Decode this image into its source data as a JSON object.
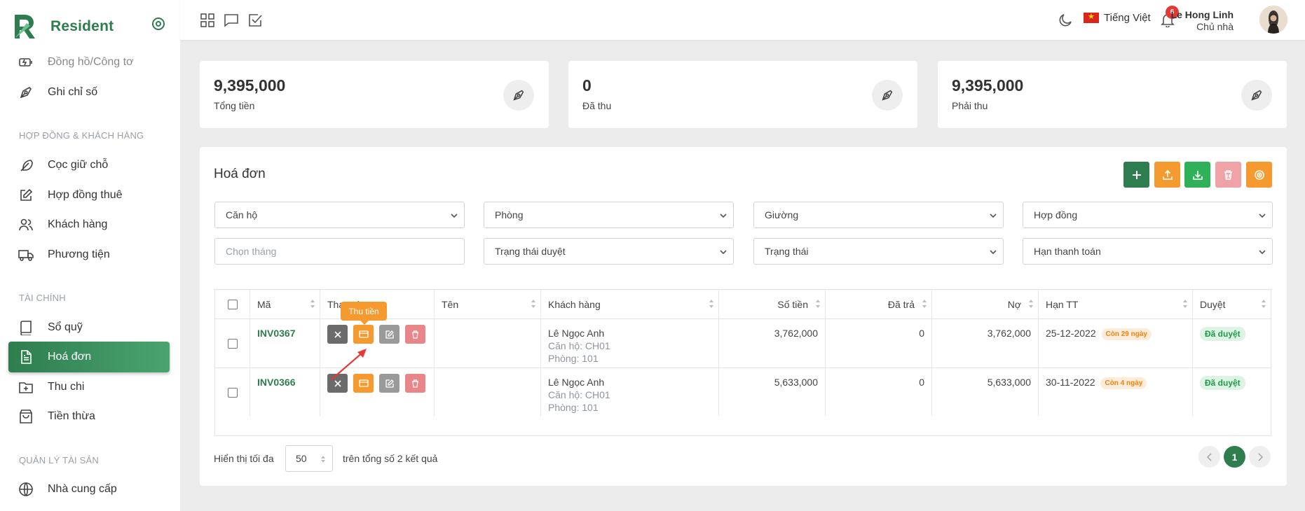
{
  "app": {
    "name": "Resident"
  },
  "sidebar": {
    "items_top": [
      {
        "label": "Đồng hồ/Công tơ",
        "icon": "meter-icon"
      },
      {
        "label": "Ghi chỉ số",
        "icon": "pen-tool-icon"
      }
    ],
    "section_contracts": "HỢP ĐỒNG & KHÁCH HÀNG",
    "items_contracts": [
      {
        "label": "Cọc giữ chỗ",
        "icon": "feather-icon"
      },
      {
        "label": "Hợp đồng thuê",
        "icon": "edit-icon"
      },
      {
        "label": "Khách hàng",
        "icon": "users-icon"
      },
      {
        "label": "Phương tiện",
        "icon": "truck-icon"
      }
    ],
    "section_finance": "TÀI CHÍNH",
    "items_finance": [
      {
        "label": "Sổ quỹ",
        "icon": "book-icon"
      },
      {
        "label": "Hoá đơn",
        "icon": "file-text-icon",
        "active": true
      },
      {
        "label": "Thu chi",
        "icon": "folder-plus-icon"
      },
      {
        "label": "Tiền thừa",
        "icon": "shopping-bag-icon"
      }
    ],
    "section_assets": "QUẢN LÝ TÀI SẢN",
    "items_assets": [
      {
        "label": "Nhà cung cấp",
        "icon": "globe-icon"
      }
    ]
  },
  "topbar": {
    "language": "Tiếng Việt",
    "notification_count": "6",
    "user_name": "Le Hong Linh",
    "user_role": "Chủ nhà"
  },
  "stats": [
    {
      "value": "9,395,000",
      "label": "Tổng tiền"
    },
    {
      "value": "0",
      "label": "Đã thu"
    },
    {
      "value": "9,395,000",
      "label": "Phải thu"
    }
  ],
  "panel": {
    "title": "Hoá đơn",
    "filters": {
      "apartment": "Căn hộ",
      "room": "Phòng",
      "bed": "Giường",
      "contract": "Hợp đồng",
      "month_placeholder": "Chọn tháng",
      "approval_status": "Trạng thái duyệt",
      "status": "Trạng thái",
      "due_date": "Hạn thanh toán"
    },
    "columns": [
      "Mã",
      "Thao tác",
      "Tên",
      "Khách hàng",
      "Số tiền",
      "Đã trả",
      "Nợ",
      "Hạn TT",
      "Duyệt"
    ],
    "tooltip": "Thu tiền",
    "rows": [
      {
        "code": "INV0367",
        "name": "",
        "customer": "Lê Ngọc Anh",
        "apartment": "Căn hộ: CH01",
        "room": "Phòng: 101",
        "amount": "3,762,000",
        "paid": "0",
        "debt": "3,762,000",
        "due": "25-12-2022",
        "remaining": "Còn 29 ngày",
        "approval": "Đã duyệt"
      },
      {
        "code": "INV0366",
        "name": "",
        "customer": "Lê Ngọc Anh",
        "apartment": "Căn hộ: CH01",
        "room": "Phòng: 101",
        "amount": "5,633,000",
        "paid": "0",
        "debt": "5,633,000",
        "due": "30-11-2022",
        "remaining": "Còn 4 ngày",
        "approval": "Đã duyệt"
      }
    ],
    "footer": {
      "show_label": "Hiển thị tối đa",
      "per_page": "50",
      "total_label": "trên tổng số 2 kết quả",
      "current_page": "1"
    }
  },
  "colors": {
    "primary": "#2e7d4f",
    "orange": "#f59a2e",
    "green": "#2fb15a",
    "danger": "#e8868a",
    "gray": "#6b6b6b"
  }
}
